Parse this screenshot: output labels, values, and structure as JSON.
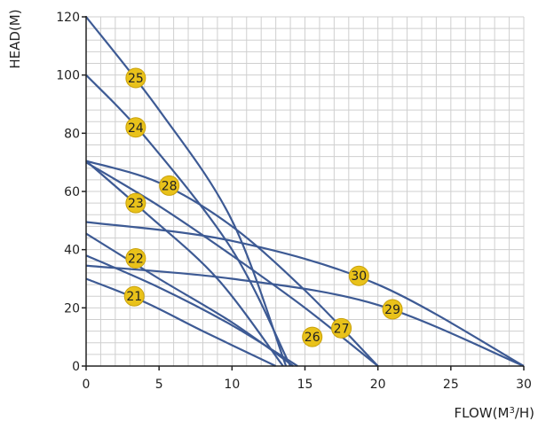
{
  "chart_data": {
    "type": "line",
    "xlabel": "FLOW(M",
    "xlabel_sup": "3",
    "xlabel_tail": "/H)",
    "ylabel": "HEAD(M)",
    "xlim": [
      0,
      30
    ],
    "ylim": [
      0,
      120
    ],
    "x_ticks": [
      0,
      5,
      10,
      15,
      20,
      25,
      30
    ],
    "y_ticks": [
      0,
      20,
      40,
      60,
      80,
      100,
      120
    ],
    "x_minor_step": 1,
    "y_minor_step": 4,
    "grid": true,
    "colors": {
      "line": "#3d5a94",
      "grid": "#cfcfcf",
      "axis": "#222222",
      "badge_fill": "#e9c21a",
      "badge_stroke": "#c9a10b"
    },
    "series": [
      {
        "name": "21",
        "points": [
          [
            0,
            30
          ],
          [
            4,
            22
          ],
          [
            8,
            12
          ],
          [
            13,
            0
          ]
        ],
        "badge": [
          3.3,
          24
        ]
      },
      {
        "name": "22",
        "points": [
          [
            0,
            38
          ],
          [
            5,
            27
          ],
          [
            10,
            14
          ],
          [
            14.5,
            0
          ]
        ],
        "badge": [
          3.4,
          37
        ]
      },
      {
        "name": "23",
        "points": [
          [
            0,
            70.5
          ],
          [
            4,
            53
          ],
          [
            9,
            30
          ],
          [
            13.5,
            0
          ]
        ],
        "badge": [
          3.4,
          56
        ]
      },
      {
        "name": "24",
        "points": [
          [
            0,
            100
          ],
          [
            4,
            79
          ],
          [
            10,
            40
          ],
          [
            14,
            0
          ]
        ],
        "badge": [
          3.4,
          82
        ]
      },
      {
        "name": "25",
        "points": [
          [
            0,
            120
          ],
          [
            5,
            88
          ],
          [
            10,
            50
          ],
          [
            13.7,
            0
          ]
        ],
        "badge": [
          3.4,
          99
        ]
      },
      {
        "name": "26",
        "points": [
          [
            0,
            45.5
          ],
          [
            5,
            30
          ],
          [
            10,
            15
          ],
          [
            14.2,
            0
          ]
        ],
        "badge": [
          15.5,
          10
        ]
      },
      {
        "name": "27",
        "points": [
          [
            0,
            70
          ],
          [
            5,
            55
          ],
          [
            10,
            38
          ],
          [
            15,
            20
          ],
          [
            20,
            0
          ]
        ],
        "badge": [
          17.5,
          13
        ]
      },
      {
        "name": "28",
        "points": [
          [
            0,
            70.5
          ],
          [
            5,
            63
          ],
          [
            10,
            48
          ],
          [
            15,
            26
          ],
          [
            20,
            0
          ]
        ],
        "badge": [
          5.7,
          62
        ]
      },
      {
        "name": "29",
        "points": [
          [
            0,
            34.5
          ],
          [
            10,
            30
          ],
          [
            20,
            21
          ],
          [
            30,
            0
          ]
        ],
        "badge": [
          21,
          19.5
        ]
      },
      {
        "name": "30",
        "points": [
          [
            0,
            49.5
          ],
          [
            10,
            43
          ],
          [
            20,
            28
          ],
          [
            30,
            0
          ]
        ],
        "badge": [
          18.7,
          31
        ]
      }
    ]
  }
}
